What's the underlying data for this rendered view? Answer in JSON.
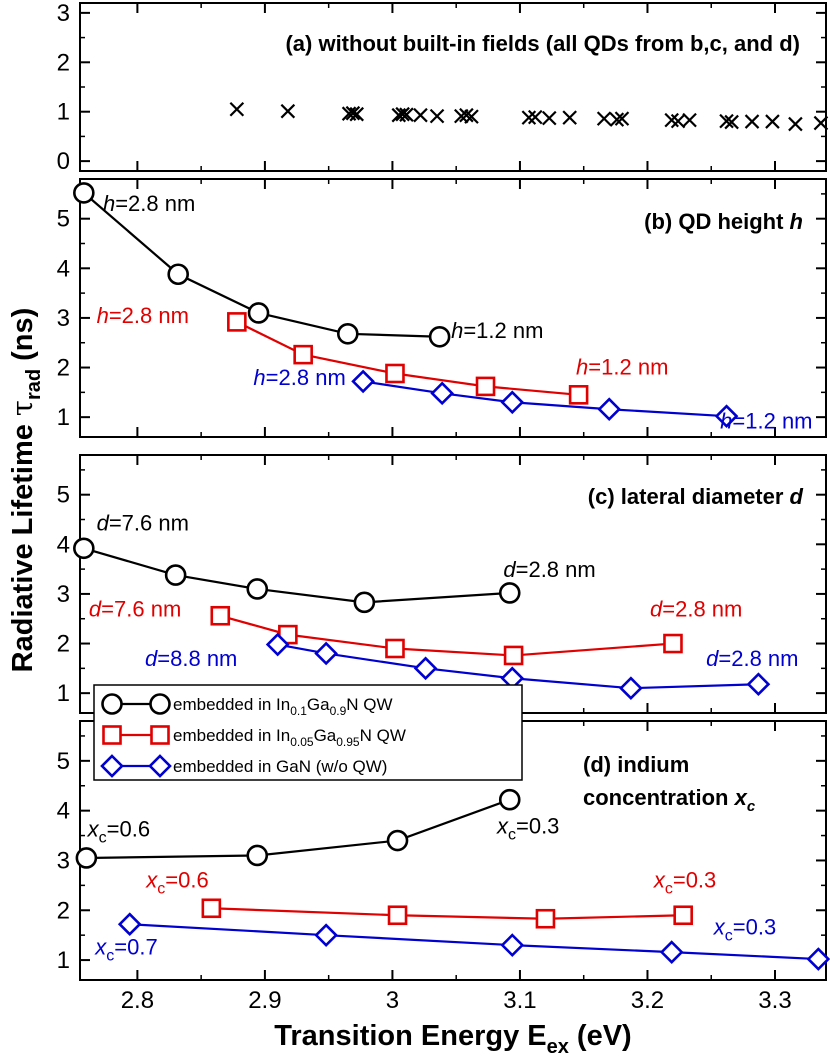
{
  "chart_data": [
    {
      "type": "scatter",
      "panel": "a",
      "title": "(a) without built-in fields (all QDs from b,c, and d)",
      "ylim": [
        -0.2,
        3.2
      ],
      "yticks": [
        0,
        1,
        2,
        3
      ],
      "xlim": [
        2.755,
        3.34
      ],
      "series": [
        {
          "name": "all QDs",
          "marker": "x",
          "color": "#000000",
          "points": [
            {
              "x": 2.878,
              "y": 1.05
            },
            {
              "x": 2.918,
              "y": 1.01
            },
            {
              "x": 2.966,
              "y": 0.96
            },
            {
              "x": 2.969,
              "y": 0.97
            },
            {
              "x": 2.972,
              "y": 0.95
            },
            {
              "x": 3.005,
              "y": 0.93
            },
            {
              "x": 3.008,
              "y": 0.95
            },
            {
              "x": 3.011,
              "y": 0.94
            },
            {
              "x": 3.022,
              "y": 0.93
            },
            {
              "x": 3.035,
              "y": 0.91
            },
            {
              "x": 3.054,
              "y": 0.91
            },
            {
              "x": 3.058,
              "y": 0.93
            },
            {
              "x": 3.062,
              "y": 0.9
            },
            {
              "x": 3.107,
              "y": 0.88
            },
            {
              "x": 3.112,
              "y": 0.89
            },
            {
              "x": 3.123,
              "y": 0.87
            },
            {
              "x": 3.139,
              "y": 0.88
            },
            {
              "x": 3.166,
              "y": 0.86
            },
            {
              "x": 3.176,
              "y": 0.84
            },
            {
              "x": 3.18,
              "y": 0.86
            },
            {
              "x": 3.219,
              "y": 0.83
            },
            {
              "x": 3.224,
              "y": 0.81
            },
            {
              "x": 3.233,
              "y": 0.83
            },
            {
              "x": 3.262,
              "y": 0.81
            },
            {
              "x": 3.266,
              "y": 0.79
            },
            {
              "x": 3.282,
              "y": 0.8
            },
            {
              "x": 3.298,
              "y": 0.8
            },
            {
              "x": 3.316,
              "y": 0.75
            },
            {
              "x": 3.336,
              "y": 0.77
            }
          ]
        }
      ]
    },
    {
      "type": "line",
      "panel": "b",
      "title": "(b) QD height",
      "title_var": "h",
      "ylim": [
        0.6,
        5.8
      ],
      "yticks": [
        1,
        2,
        3,
        4,
        5
      ],
      "xlim": [
        2.755,
        3.34
      ],
      "series": [
        {
          "name": "In0.1Ga0.9N QW",
          "marker": "circle",
          "color": "#000000",
          "x": [
            2.758,
            2.832,
            2.895,
            2.965,
            3.037
          ],
          "y": [
            5.52,
            3.88,
            3.1,
            2.68,
            2.62
          ]
        },
        {
          "name": "In0.05Ga0.95N QW",
          "marker": "square",
          "color": "#e00000",
          "x": [
            2.878,
            2.93,
            3.002,
            3.073,
            3.146
          ],
          "y": [
            2.92,
            2.26,
            1.88,
            1.62,
            1.45
          ]
        },
        {
          "name": "GaN",
          "marker": "diamond",
          "color": "#0000d0",
          "x": [
            2.977,
            3.039,
            3.094,
            3.17,
            3.262
          ],
          "y": [
            1.72,
            1.48,
            1.3,
            1.16,
            1.02
          ]
        }
      ],
      "annotations": [
        {
          "var": "h",
          "text": "=2.8 nm",
          "color": "#000000",
          "x": 2.773,
          "y": 5.16
        },
        {
          "var": "h",
          "text": "=1.2 nm",
          "color": "#000000",
          "x": 3.046,
          "y": 2.6
        },
        {
          "var": "h",
          "text": "=2.8 nm",
          "color": "#e00000",
          "x": 2.768,
          "y": 2.9
        },
        {
          "var": "h",
          "text": "=1.2 nm",
          "color": "#e00000",
          "x": 3.144,
          "y": 1.86
        },
        {
          "var": "h",
          "text": "=2.8 nm",
          "color": "#0000d0",
          "x": 2.891,
          "y": 1.65
        },
        {
          "var": "h",
          "text": "=1.2 nm",
          "color": "#0000d0",
          "x": 3.257,
          "y": 0.77
        }
      ]
    },
    {
      "type": "line",
      "panel": "c",
      "title": "(c) lateral diameter",
      "title_var": "d",
      "ylim": [
        0.6,
        5.8
      ],
      "yticks": [
        1,
        2,
        3,
        4,
        5
      ],
      "xlim": [
        2.755,
        3.34
      ],
      "series": [
        {
          "name": "In0.1Ga0.9N QW",
          "marker": "circle",
          "color": "#000000",
          "x": [
            2.758,
            2.83,
            2.894,
            2.978,
            3.092
          ],
          "y": [
            3.92,
            3.38,
            3.1,
            2.83,
            3.02
          ]
        },
        {
          "name": "In0.05Ga0.95N QW",
          "marker": "square",
          "color": "#e00000",
          "x": [
            2.865,
            2.918,
            3.002,
            3.095,
            3.22
          ],
          "y": [
            2.56,
            2.18,
            1.9,
            1.76,
            2.0
          ]
        },
        {
          "name": "GaN",
          "marker": "diamond",
          "color": "#0000d0",
          "x": [
            2.91,
            2.948,
            3.026,
            3.094,
            3.187,
            3.287
          ],
          "y": [
            1.98,
            1.8,
            1.5,
            1.3,
            1.1,
            1.18
          ]
        }
      ],
      "annotations": [
        {
          "var": "d",
          "text": "=7.6 nm",
          "color": "#000000",
          "x": 2.768,
          "y": 4.28
        },
        {
          "var": "d",
          "text": "=2.8 nm",
          "color": "#000000",
          "x": 3.087,
          "y": 3.34
        },
        {
          "var": "d",
          "text": "=7.6 nm",
          "color": "#e00000",
          "x": 2.762,
          "y": 2.55
        },
        {
          "var": "d",
          "text": "=2.8 nm",
          "color": "#e00000",
          "x": 3.202,
          "y": 2.55
        },
        {
          "var": "d",
          "text": "=8.8 nm",
          "color": "#0000d0",
          "x": 2.806,
          "y": 1.55
        },
        {
          "var": "d",
          "text": "=2.8 nm",
          "color": "#0000d0",
          "x": 3.246,
          "y": 1.55
        }
      ]
    },
    {
      "type": "line",
      "panel": "d",
      "title": "(d) indium",
      "title_line2": "concentration",
      "title_var": "x",
      "title_var_sub": "c",
      "ylim": [
        0.6,
        5.8
      ],
      "yticks": [
        1,
        2,
        3,
        4,
        5
      ],
      "xlim": [
        2.755,
        3.34
      ],
      "series": [
        {
          "name": "In0.1Ga0.9N QW",
          "marker": "circle",
          "color": "#000000",
          "x": [
            2.76,
            2.894,
            3.004,
            3.092
          ],
          "y": [
            3.05,
            3.1,
            3.4,
            4.22
          ]
        },
        {
          "name": "In0.05Ga0.95N QW",
          "marker": "square",
          "color": "#e00000",
          "x": [
            2.858,
            3.004,
            3.12,
            3.228
          ],
          "y": [
            2.04,
            1.9,
            1.83,
            1.9
          ]
        },
        {
          "name": "GaN",
          "marker": "diamond",
          "color": "#0000d0",
          "x": [
            2.794,
            2.948,
            3.094,
            3.219,
            3.334
          ],
          "y": [
            1.72,
            1.5,
            1.3,
            1.16,
            1.02
          ]
        }
      ],
      "annotations": [
        {
          "var": "x",
          "sub": "c",
          "text": "=0.6",
          "color": "#000000",
          "x": 2.761,
          "y": 3.48
        },
        {
          "var": "x",
          "sub": "c",
          "text": "=0.3",
          "color": "#000000",
          "x": 3.082,
          "y": 3.54
        },
        {
          "var": "x",
          "sub": "c",
          "text": "=0.6",
          "color": "#e00000",
          "x": 2.807,
          "y": 2.46
        },
        {
          "var": "x",
          "sub": "c",
          "text": "=0.3",
          "color": "#e00000",
          "x": 3.205,
          "y": 2.46
        },
        {
          "var": "x",
          "sub": "c",
          "text": "=0.7",
          "color": "#0000d0",
          "x": 2.767,
          "y": 1.11
        },
        {
          "var": "x",
          "sub": "c",
          "text": "=0.3",
          "color": "#0000d0",
          "x": 3.252,
          "y": 1.51
        }
      ]
    }
  ],
  "x_axis": {
    "ticks": [
      2.8,
      2.9,
      3.0,
      3.1,
      3.2,
      3.3
    ],
    "tick_labels": [
      "2.8",
      "2.9",
      "3",
      "3.1",
      "3.2",
      "3.3"
    ],
    "label": "Transition Energy E",
    "label_sub": "ex",
    "label_unit": " (eV)"
  },
  "y_axis": {
    "label": "Radiative Lifetime ",
    "label_symbol": "τ",
    "label_sub": "rad",
    "label_unit": " (ns)"
  },
  "legend": {
    "location": "inside panel d, upper left",
    "entries": [
      {
        "prefix": "embedded in In",
        "sub1": "0.1",
        "mid": "Ga",
        "sub2": "0.9",
        "suffix": "N QW",
        "marker": "circle",
        "color": "#000000"
      },
      {
        "prefix": "embedded in In",
        "sub1": "0.05",
        "mid": "Ga",
        "sub2": "0.95",
        "suffix": "N QW",
        "marker": "square",
        "color": "#e00000"
      },
      {
        "prefix": "embedded in GaN (w/o QW)",
        "marker": "diamond",
        "color": "#0000d0"
      }
    ]
  }
}
